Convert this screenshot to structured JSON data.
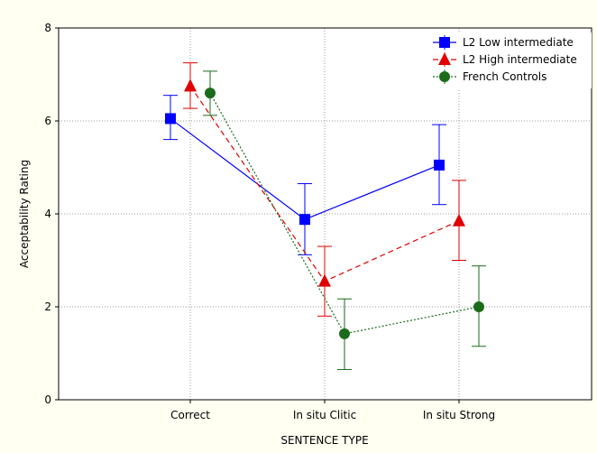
{
  "chart_data": {
    "type": "line",
    "categories": [
      "Correct",
      "In situ Clitic",
      "In situ Strong"
    ],
    "xlabel": "SENTENCE TYPE",
    "ylabel": "Acceptability Rating",
    "ylim": [
      0,
      8
    ],
    "yticks": [
      0,
      2,
      4,
      6,
      8
    ],
    "grid": true,
    "legend_position": "top-right",
    "error_bars": true,
    "series": [
      {
        "name": "L2 Low intermediate",
        "color": "#0000ff",
        "marker": "square",
        "dash": "solid",
        "values": [
          6.05,
          3.88,
          5.05
        ],
        "err_low": [
          5.6,
          3.12,
          4.2
        ],
        "err_high": [
          6.55,
          4.65,
          5.92
        ]
      },
      {
        "name": "L2 High intermediate",
        "color": "#e00000",
        "marker": "triangle",
        "dash": "dashed",
        "values": [
          6.75,
          2.55,
          3.85
        ],
        "err_low": [
          6.27,
          1.8,
          3.0
        ],
        "err_high": [
          7.25,
          3.3,
          4.72
        ]
      },
      {
        "name": "French Controls",
        "color": "#1a6b1a",
        "marker": "circle",
        "dash": "dotted",
        "values": [
          6.6,
          1.42,
          2.0
        ],
        "err_low": [
          6.12,
          0.65,
          1.15
        ],
        "err_high": [
          7.07,
          2.17,
          2.88
        ]
      }
    ]
  }
}
